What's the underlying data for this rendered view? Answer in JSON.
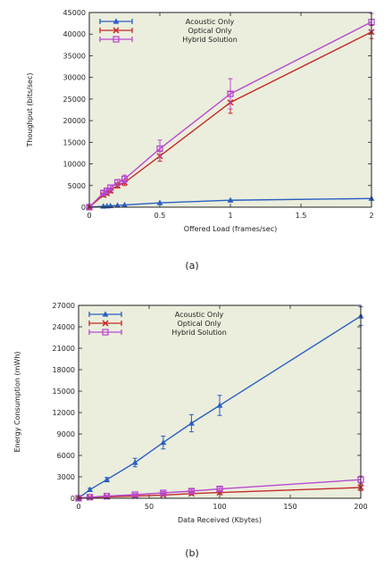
{
  "chart_data": [
    {
      "type": "line",
      "panel_label": "(a)",
      "xlabel": "Offered Load (frames/sec)",
      "ylabel": "Thoughput (bits/sec)",
      "xlim": [
        0,
        2
      ],
      "ylim": [
        0,
        45000
      ],
      "xticks": [
        0,
        0.5,
        1,
        1.5,
        2
      ],
      "xtick_labels": [
        "0",
        "0.5",
        "1",
        "1.5",
        "2"
      ],
      "yticks": [
        0,
        5000,
        10000,
        15000,
        20000,
        25000,
        30000,
        35000,
        40000,
        45000
      ],
      "ytick_labels": [
        "0",
        "5000",
        "10000",
        "15000",
        "20000",
        "25000",
        "30000",
        "35000",
        "40000",
        "45000"
      ],
      "grid": false,
      "legend_position": "top-left",
      "x": [
        0,
        0.1,
        0.125,
        0.15,
        0.2,
        0.25,
        0.5,
        1,
        2
      ],
      "series": [
        {
          "name": "Acoustic Only",
          "color": "#2a5fc4",
          "marker": "triangle",
          "values": [
            0,
            200,
            250,
            300,
            400,
            500,
            1000,
            1600,
            2000
          ],
          "errors": [
            0,
            0,
            0,
            0,
            0,
            0,
            0,
            0,
            0
          ]
        },
        {
          "name": "Optical Only",
          "color": "#c42a2a",
          "marker": "x",
          "values": [
            0,
            2800,
            3200,
            3800,
            5000,
            5700,
            11800,
            24200,
            40500
          ],
          "errors": [
            0,
            400,
            400,
            500,
            600,
            700,
            1200,
            2500,
            1500
          ]
        },
        {
          "name": "Hybrid Solution",
          "color": "#b84ad0",
          "marker": "square",
          "values": [
            0,
            3300,
            3800,
            4500,
            5700,
            6500,
            13500,
            26200,
            42800
          ],
          "errors": [
            0,
            500,
            500,
            600,
            700,
            900,
            2000,
            3500,
            2000
          ]
        }
      ]
    },
    {
      "type": "line",
      "panel_label": "(b)",
      "xlabel": "Data Received (Kbytes)",
      "ylabel": "Energy Consumption (mWh)",
      "xlim": [
        0,
        200
      ],
      "ylim": [
        0,
        27000
      ],
      "xticks": [
        0,
        50,
        100,
        150,
        200
      ],
      "xtick_labels": [
        "0",
        "50",
        "100",
        "150",
        "200"
      ],
      "yticks": [
        0,
        3000,
        6000,
        9000,
        12000,
        15000,
        18000,
        21000,
        24000,
        27000
      ],
      "ytick_labels": [
        "0",
        "3000",
        "6000",
        "9000",
        "12000",
        "15000",
        "18000",
        "21000",
        "24000",
        "27000"
      ],
      "grid": false,
      "legend_position": "top-left",
      "x": [
        0,
        8,
        20,
        40,
        60,
        80,
        100,
        200
      ],
      "series": [
        {
          "name": "Acoustic Only",
          "color": "#2a5fc4",
          "marker": "triangle",
          "values": [
            0,
            1200,
            2600,
            5000,
            7800,
            10500,
            13000,
            25500
          ],
          "errors": [
            0,
            200,
            300,
            600,
            900,
            1200,
            1400,
            1300
          ]
        },
        {
          "name": "Optical Only",
          "color": "#c42a2a",
          "marker": "x",
          "values": [
            0,
            100,
            200,
            300,
            450,
            650,
            800,
            1500
          ],
          "errors": [
            0,
            50,
            80,
            100,
            150,
            200,
            250,
            400
          ]
        },
        {
          "name": "Hybrid Solution",
          "color": "#b84ad0",
          "marker": "square",
          "values": [
            0,
            150,
            300,
            500,
            750,
            1000,
            1300,
            2600
          ],
          "errors": [
            0,
            80,
            100,
            150,
            200,
            250,
            300,
            500
          ]
        }
      ]
    }
  ]
}
